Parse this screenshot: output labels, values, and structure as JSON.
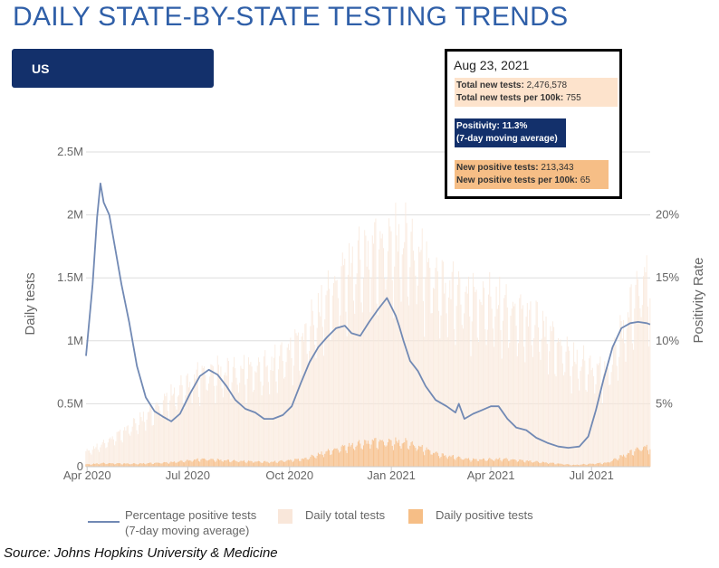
{
  "title": "DAILY STATE-BY-STATE TESTING TRENDS",
  "region_selector": {
    "label": "US"
  },
  "tooltip": {
    "date": "Aug 23, 2021",
    "total_new_tests_label": "Total new tests:",
    "total_new_tests_value": "2,476,578",
    "total_new_tests_per100k_label": "Total new tests per 100k:",
    "total_new_tests_per100k_value": "755",
    "positivity_label": "Positivity: 11.3%",
    "positivity_note": "(7-day moving average)",
    "new_positive_label": "New positive tests:",
    "new_positive_value": "213,343",
    "new_positive_per100k_label": "New positive tests per 100k:",
    "new_positive_per100k_value": "65"
  },
  "source": "Source:  Johns Hopkins University & Medicine",
  "colors": {
    "title": "#2f5fa8",
    "positivity_line": "#7189b4",
    "total_tests_bars": "#f9e7da",
    "positive_tests_bars": "#f6be86",
    "selector_bg": "#13306b"
  },
  "chart_data": {
    "type": "bar+line",
    "xlabel": "",
    "ylabel": "Daily tests",
    "y2label": "Positivity Rate",
    "ylim": [
      0,
      2500000
    ],
    "y2lim": [
      0,
      25
    ],
    "x_tick_labels": [
      "Apr 2020",
      "Jul 2020",
      "Oct 2020",
      "Jan 2021",
      "Apr 2021",
      "Jul 2021"
    ],
    "y_tick_labels": [
      "0",
      "0.5M",
      "1M",
      "1.5M",
      "2M",
      "2.5M"
    ],
    "y_tick_values": [
      0,
      500000,
      1000000,
      1500000,
      2000000,
      2500000
    ],
    "y2_tick_labels": [
      "5%",
      "10%",
      "15%",
      "20%"
    ],
    "y2_tick_values": [
      5,
      10,
      15,
      20
    ],
    "grid": "horizontal",
    "legend_position": "bottom",
    "legend": [
      "Percentage positive tests (7-day moving average)",
      "Daily total tests",
      "Daily positive tests"
    ],
    "legend_line1": "Percentage positive tests",
    "legend_line2": "(7-day moving average)",
    "monthly": {
      "months": [
        "2020-03",
        "2020-04",
        "2020-05",
        "2020-06",
        "2020-07",
        "2020-08",
        "2020-09",
        "2020-10",
        "2020-11",
        "2020-12",
        "2021-01",
        "2021-02",
        "2021-03",
        "2021-04",
        "2021-05",
        "2021-06",
        "2021-07",
        "2021-08"
      ],
      "total_tests": [
        50000,
        180000,
        350000,
        560000,
        750000,
        760000,
        810000,
        1050000,
        1500000,
        1750000,
        1800000,
        1450000,
        1350000,
        1280000,
        1150000,
        850000,
        750000,
        1500000
      ],
      "positive_tests": [
        8000,
        28000,
        24000,
        35000,
        62000,
        46000,
        38000,
        65000,
        150000,
        205000,
        195000,
        95000,
        58000,
        62000,
        38000,
        14000,
        32000,
        155000
      ]
    },
    "series": [
      {
        "name": "Percentage positive tests (7-day moving average)",
        "axis": "right",
        "dates": [
          "2020-03-31",
          "2020-04-06",
          "2020-04-10",
          "2020-04-13",
          "2020-04-16",
          "2020-04-21",
          "2020-04-26",
          "2020-05-02",
          "2020-05-09",
          "2020-05-16",
          "2020-05-24",
          "2020-06-01",
          "2020-06-08",
          "2020-06-16",
          "2020-06-24",
          "2020-07-03",
          "2020-07-12",
          "2020-07-20",
          "2020-07-28",
          "2020-08-05",
          "2020-08-13",
          "2020-08-22",
          "2020-08-31",
          "2020-09-08",
          "2020-09-16",
          "2020-09-25",
          "2020-10-03",
          "2020-10-11",
          "2020-10-19",
          "2020-10-27",
          "2020-11-04",
          "2020-11-12",
          "2020-11-20",
          "2020-11-26",
          "2020-12-04",
          "2020-12-12",
          "2020-12-20",
          "2020-12-28",
          "2021-01-05",
          "2021-01-08",
          "2021-01-12",
          "2021-01-18",
          "2021-01-25",
          "2021-02-01",
          "2021-02-10",
          "2021-02-20",
          "2021-02-28",
          "2021-03-03",
          "2021-03-08",
          "2021-03-16",
          "2021-03-24",
          "2021-04-01",
          "2021-04-08",
          "2021-04-16",
          "2021-04-24",
          "2021-05-03",
          "2021-05-12",
          "2021-05-22",
          "2021-06-01",
          "2021-06-10",
          "2021-06-20",
          "2021-06-28",
          "2021-07-05",
          "2021-07-12",
          "2021-07-20",
          "2021-07-28",
          "2021-08-05",
          "2021-08-12",
          "2021-08-20",
          "2021-08-23"
        ],
        "values": [
          8.8,
          14.5,
          19.8,
          22.5,
          21.0,
          20.0,
          17.5,
          14.5,
          11.5,
          8.0,
          5.5,
          4.4,
          4.0,
          3.6,
          4.2,
          5.8,
          7.2,
          7.7,
          7.3,
          6.4,
          5.3,
          4.6,
          4.3,
          3.8,
          3.8,
          4.1,
          4.8,
          6.6,
          8.3,
          9.5,
          10.3,
          11.0,
          11.2,
          10.6,
          10.4,
          11.5,
          12.5,
          13.4,
          12.0,
          11.2,
          10.0,
          8.4,
          7.6,
          6.4,
          5.3,
          4.8,
          4.3,
          5.0,
          3.8,
          4.2,
          4.5,
          4.8,
          4.8,
          3.8,
          3.1,
          2.9,
          2.3,
          1.9,
          1.6,
          1.5,
          1.6,
          2.4,
          4.5,
          7.0,
          9.5,
          11.0,
          11.4,
          11.5,
          11.4,
          11.3
        ]
      }
    ]
  }
}
